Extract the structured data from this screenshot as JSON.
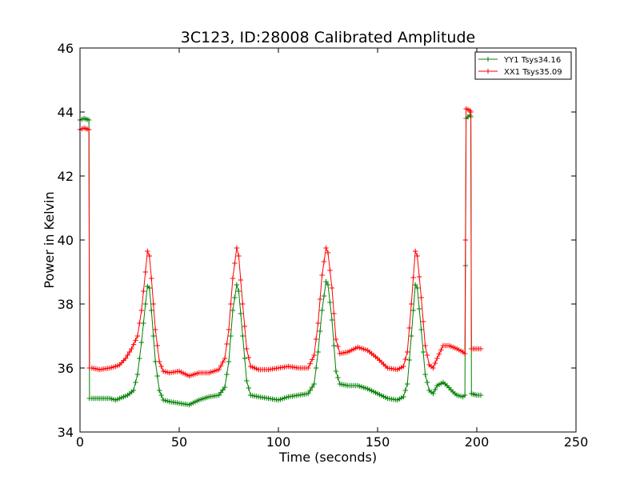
{
  "chart_data": {
    "type": "line",
    "title": "3C123, ID:28008 Calibrated Amplitude",
    "xlabel": "Time (seconds)",
    "ylabel": "Power in Kelvin",
    "xlim": [
      0,
      250
    ],
    "ylim": [
      34,
      46
    ],
    "xticks": [
      0,
      50,
      100,
      150,
      200,
      250
    ],
    "yticks": [
      34,
      36,
      38,
      40,
      42,
      44,
      46
    ],
    "grid": false,
    "legend": "top-right",
    "marker": "plus",
    "series": [
      {
        "name": "YY1 Tsys34.16",
        "color": "#008000",
        "points": [
          [
            0,
            43.75
          ],
          [
            2,
            43.8
          ],
          [
            4.5,
            43.75
          ],
          [
            4.8,
            35.05
          ],
          [
            6,
            35.05
          ],
          [
            10,
            35.05
          ],
          [
            15,
            35.05
          ],
          [
            18,
            35.0
          ],
          [
            20,
            35.05
          ],
          [
            24,
            35.15
          ],
          [
            27,
            35.3
          ],
          [
            29,
            35.8
          ],
          [
            31,
            36.8
          ],
          [
            33,
            38.0
          ],
          [
            34,
            38.55
          ],
          [
            35,
            38.5
          ],
          [
            36,
            37.8
          ],
          [
            38,
            36.2
          ],
          [
            40,
            35.3
          ],
          [
            42,
            35.0
          ],
          [
            45,
            34.95
          ],
          [
            50,
            34.9
          ],
          [
            55,
            34.85
          ],
          [
            60,
            35.0
          ],
          [
            65,
            35.1
          ],
          [
            70,
            35.15
          ],
          [
            73,
            35.4
          ],
          [
            75,
            36.2
          ],
          [
            77,
            37.8
          ],
          [
            79,
            38.6
          ],
          [
            80,
            38.4
          ],
          [
            82,
            37.0
          ],
          [
            84,
            35.6
          ],
          [
            86,
            35.15
          ],
          [
            90,
            35.1
          ],
          [
            95,
            35.05
          ],
          [
            100,
            35.0
          ],
          [
            105,
            35.1
          ],
          [
            110,
            35.15
          ],
          [
            115,
            35.2
          ],
          [
            118,
            35.5
          ],
          [
            120,
            36.5
          ],
          [
            122,
            37.8
          ],
          [
            124,
            38.7
          ],
          [
            125,
            38.6
          ],
          [
            127,
            37.5
          ],
          [
            129,
            35.9
          ],
          [
            131,
            35.5
          ],
          [
            135,
            35.45
          ],
          [
            140,
            35.45
          ],
          [
            145,
            35.35
          ],
          [
            150,
            35.2
          ],
          [
            155,
            35.05
          ],
          [
            160,
            35.0
          ],
          [
            163,
            35.1
          ],
          [
            165,
            35.5
          ],
          [
            167,
            37.0
          ],
          [
            169,
            38.6
          ],
          [
            170,
            38.5
          ],
          [
            172,
            37.2
          ],
          [
            174,
            35.8
          ],
          [
            176,
            35.3
          ],
          [
            178,
            35.2
          ],
          [
            180,
            35.45
          ],
          [
            183,
            35.55
          ],
          [
            185,
            35.45
          ],
          [
            188,
            35.25
          ],
          [
            190,
            35.15
          ],
          [
            193,
            35.1
          ],
          [
            194,
            35.15
          ],
          [
            194.3,
            39.2
          ],
          [
            194.6,
            43.8
          ],
          [
            196.5,
            43.9
          ],
          [
            197,
            43.85
          ],
          [
            197.3,
            35.2
          ],
          [
            200,
            35.15
          ],
          [
            202,
            35.15
          ]
        ]
      },
      {
        "name": "XX1 Tsys35.09",
        "color": "#ff0000",
        "points": [
          [
            0,
            43.45
          ],
          [
            2,
            43.5
          ],
          [
            4.5,
            43.45
          ],
          [
            4.8,
            36.0
          ],
          [
            6,
            36.0
          ],
          [
            10,
            35.95
          ],
          [
            15,
            36.0
          ],
          [
            18,
            36.05
          ],
          [
            20,
            36.1
          ],
          [
            23,
            36.3
          ],
          [
            26,
            36.6
          ],
          [
            29,
            37.0
          ],
          [
            31,
            37.8
          ],
          [
            33,
            39.0
          ],
          [
            34,
            39.65
          ],
          [
            35,
            39.5
          ],
          [
            36,
            38.8
          ],
          [
            38,
            37.2
          ],
          [
            40,
            36.2
          ],
          [
            42,
            35.9
          ],
          [
            45,
            35.85
          ],
          [
            50,
            35.9
          ],
          [
            55,
            35.75
          ],
          [
            60,
            35.85
          ],
          [
            65,
            35.85
          ],
          [
            70,
            35.95
          ],
          [
            73,
            36.3
          ],
          [
            75,
            37.2
          ],
          [
            77,
            38.8
          ],
          [
            79,
            39.75
          ],
          [
            80,
            39.5
          ],
          [
            82,
            38.0
          ],
          [
            84,
            36.6
          ],
          [
            86,
            36.05
          ],
          [
            90,
            35.95
          ],
          [
            95,
            35.95
          ],
          [
            100,
            36.0
          ],
          [
            105,
            36.05
          ],
          [
            110,
            36.0
          ],
          [
            115,
            36.0
          ],
          [
            118,
            36.4
          ],
          [
            120,
            37.4
          ],
          [
            122,
            38.9
          ],
          [
            124,
            39.75
          ],
          [
            125,
            39.6
          ],
          [
            127,
            38.5
          ],
          [
            129,
            36.9
          ],
          [
            131,
            36.45
          ],
          [
            135,
            36.5
          ],
          [
            140,
            36.65
          ],
          [
            145,
            36.55
          ],
          [
            150,
            36.3
          ],
          [
            155,
            36.0
          ],
          [
            160,
            35.95
          ],
          [
            163,
            36.05
          ],
          [
            165,
            36.5
          ],
          [
            167,
            38.0
          ],
          [
            169,
            39.65
          ],
          [
            170,
            39.5
          ],
          [
            172,
            38.2
          ],
          [
            174,
            36.7
          ],
          [
            176,
            36.1
          ],
          [
            178,
            36.0
          ],
          [
            180,
            36.3
          ],
          [
            183,
            36.7
          ],
          [
            186,
            36.7
          ],
          [
            190,
            36.6
          ],
          [
            193,
            36.5
          ],
          [
            194,
            36.45
          ],
          [
            194.3,
            40.0
          ],
          [
            194.6,
            44.1
          ],
          [
            196.5,
            44.05
          ],
          [
            197,
            44.0
          ],
          [
            197.3,
            36.6
          ],
          [
            200,
            36.6
          ],
          [
            202,
            36.6
          ]
        ]
      }
    ]
  }
}
